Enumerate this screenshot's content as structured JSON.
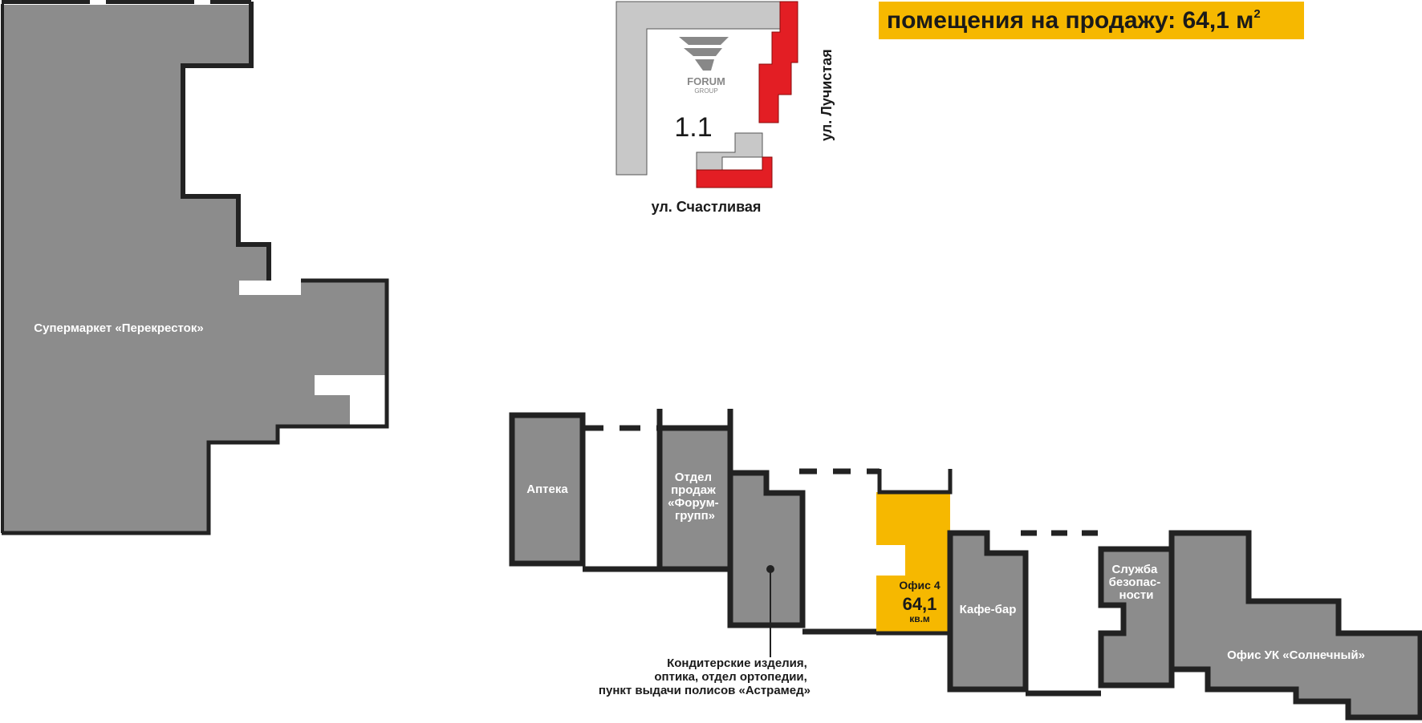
{
  "banner": {
    "text": "помещения на продажу: 64,1 м",
    "sup": "2"
  },
  "locator": {
    "building": "1.1",
    "logo_main": "FORUM",
    "logo_sub": "GROUP",
    "street_bottom": "ул. Счастливая",
    "street_right": "ул. Лучистая"
  },
  "rooms": {
    "supermarket": "Супермаркет «Перекресток»",
    "pharmacy": "Аптека",
    "sales": [
      "Отдел",
      "продаж",
      "«Форум-",
      "групп»"
    ],
    "office4_name": "Офис 4",
    "office4_area": "64,1",
    "office4_unit": "кв.м",
    "cafe": "Кафе-бар",
    "security": [
      "Служба",
      "безопас-",
      "ности"
    ],
    "uk_office": "Офис УК «Солнечный»"
  },
  "callout": [
    "Кондитерские изделия,",
    "оптика, отдел ортопедии,",
    "пункт выдачи полисов «Астрамед»"
  ],
  "colors": {
    "room_gray": "#8c8c8c",
    "wall": "#222222",
    "sale_yellow": "#f6b800",
    "locator_gray": "#c8c8c8",
    "locator_red": "#e31e24"
  }
}
